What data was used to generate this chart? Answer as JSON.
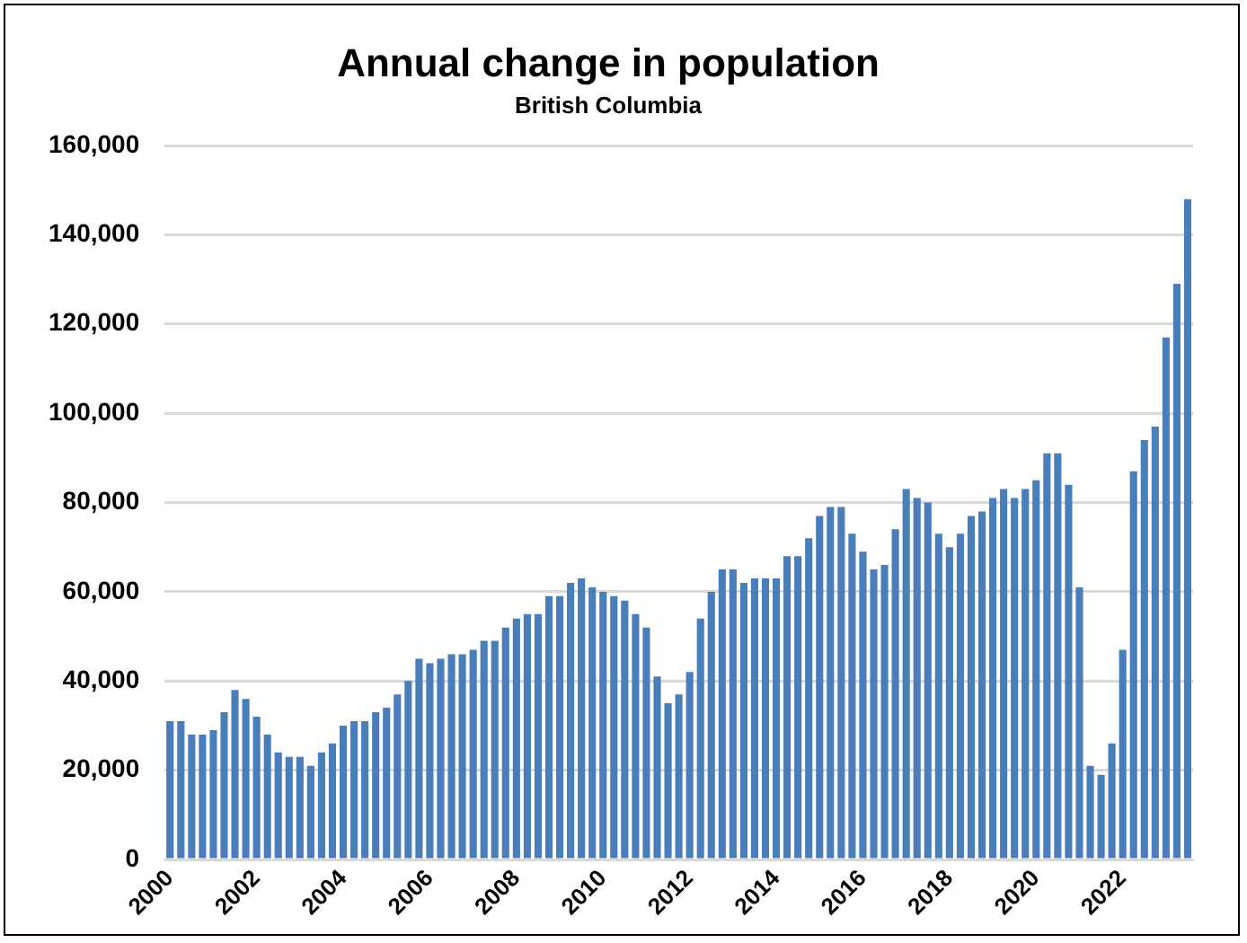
{
  "chart_data": {
    "type": "bar",
    "title": "Annual change in population",
    "subtitle": "British Columbia",
    "categories": [
      "2000",
      null,
      null,
      null,
      null,
      null,
      null,
      null,
      "2002",
      null,
      null,
      null,
      null,
      null,
      null,
      null,
      "2004",
      null,
      null,
      null,
      null,
      null,
      null,
      null,
      "2006",
      null,
      null,
      null,
      null,
      null,
      null,
      null,
      "2008",
      null,
      null,
      null,
      null,
      null,
      null,
      null,
      "2010",
      null,
      null,
      null,
      null,
      null,
      null,
      null,
      "2012",
      null,
      null,
      null,
      null,
      null,
      null,
      null,
      "2014",
      null,
      null,
      null,
      null,
      null,
      null,
      null,
      "2016",
      null,
      null,
      null,
      null,
      null,
      null,
      null,
      "2018",
      null,
      null,
      null,
      null,
      null,
      null,
      null,
      "2020",
      null,
      null,
      null,
      null,
      null,
      null,
      null,
      "2022",
      null,
      null,
      null,
      null,
      null,
      null
    ],
    "values": [
      31000,
      31000,
      28000,
      28000,
      29000,
      33000,
      38000,
      36000,
      32000,
      28000,
      24000,
      23000,
      23000,
      21000,
      24000,
      26000,
      30000,
      31000,
      31000,
      33000,
      34000,
      37000,
      40000,
      45000,
      44000,
      45000,
      46000,
      46000,
      47000,
      49000,
      49000,
      52000,
      54000,
      55000,
      55000,
      59000,
      59000,
      62000,
      63000,
      61000,
      60000,
      59000,
      58000,
      55000,
      52000,
      41000,
      35000,
      37000,
      42000,
      54000,
      60000,
      65000,
      65000,
      62000,
      63000,
      63000,
      63000,
      68000,
      68000,
      72000,
      77000,
      79000,
      79000,
      73000,
      69000,
      65000,
      66000,
      74000,
      83000,
      81000,
      80000,
      73000,
      70000,
      73000,
      77000,
      78000,
      81000,
      83000,
      81000,
      83000,
      85000,
      91000,
      91000,
      84000,
      61000,
      21000,
      19000,
      26000,
      47000,
      87000,
      94000,
      97000,
      117000,
      129000,
      148000
    ],
    "color": "#4a7ebb",
    "ylim": [
      0,
      160000
    ],
    "yticks": [
      0,
      {
        "value": 20000,
        "label": "20,000"
      },
      {
        "value": 40000,
        "label": "40,000"
      },
      {
        "value": 60000,
        "label": "60,000"
      },
      {
        "value": 80000,
        "label": "80,000"
      },
      {
        "value": 100000,
        "label": "100,000"
      },
      {
        "value": 120000,
        "label": "120,000"
      },
      {
        "value": 140000,
        "label": "140,000"
      },
      {
        "value": 160000,
        "label": "160,000"
      }
    ],
    "grid": "y"
  }
}
